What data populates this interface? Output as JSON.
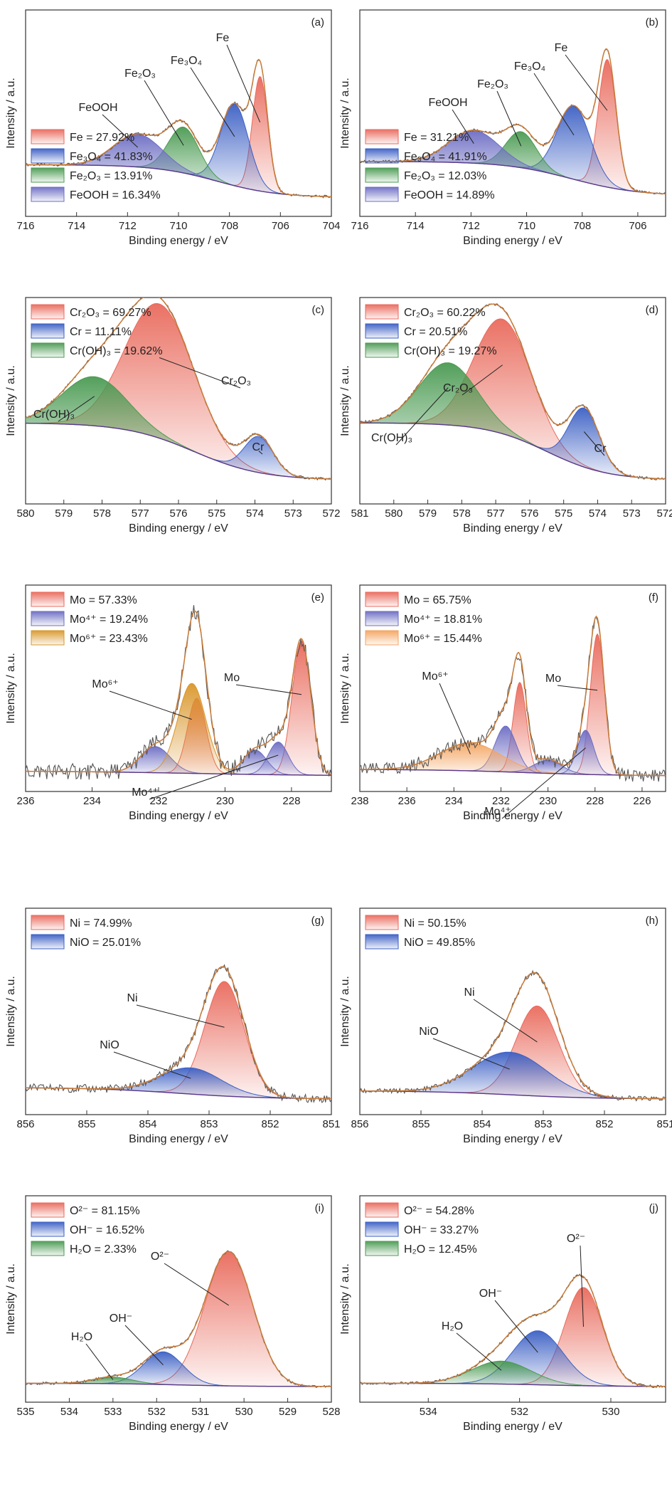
{
  "figure": {
    "xlabel": "Binding energy / eV",
    "ylabel": "Intensity / a.u."
  },
  "chart_data": [
    {
      "id": "a",
      "panel_label": "(a)",
      "type": "area",
      "xlabel": "Binding energy / eV",
      "ylabel": "Intensity / a.u.",
      "xlim": [
        716,
        704
      ],
      "xticks": [
        716,
        714,
        712,
        710,
        708,
        706,
        704
      ],
      "legend_position": "bottom-left",
      "background": {
        "start": 0.22,
        "end": 0.02,
        "center": 708.5,
        "width": 1.2
      },
      "series": [
        {
          "name": "Fe = 27.92%",
          "label": "Fe",
          "component": "Fe",
          "center": 706.8,
          "height": 0.7,
          "width": 0.3,
          "color": "#e96a5c"
        },
        {
          "name": "Fe₃O₄ = 41.83%",
          "label": "Fe₃O₄",
          "component": "Fe3O4",
          "center": 707.8,
          "height": 0.5,
          "width": 0.55,
          "color": "#3b5fc4"
        },
        {
          "name": "Fe₂O₃ = 13.91%",
          "label": "Fe₂O₃",
          "component": "Fe2O3",
          "center": 709.8,
          "height": 0.28,
          "width": 0.6,
          "color": "#4a9a52"
        },
        {
          "name": "FeOOH = 16.34%",
          "label": "FeOOH",
          "component": "FeOOH",
          "center": 711.6,
          "height": 0.2,
          "width": 0.95,
          "color": "#6c6cc4"
        }
      ]
    },
    {
      "id": "b",
      "panel_label": "(b)",
      "type": "area",
      "xlabel": "Binding energy / eV",
      "ylabel": "Intensity / a.u.",
      "xlim": [
        716,
        705
      ],
      "xticks": [
        716,
        714,
        712,
        710,
        708,
        706
      ],
      "legend_position": "bottom-left",
      "background": {
        "start": 0.24,
        "end": 0.03,
        "center": 708.4,
        "width": 1.2
      },
      "series": [
        {
          "name": "Fe = 31.21%",
          "label": "Fe",
          "component": "Fe",
          "center": 707.1,
          "height": 0.78,
          "width": 0.32,
          "color": "#e96a5c"
        },
        {
          "name": "Fe₃O₄ = 41.91%",
          "label": "Fe₃O₄",
          "component": "Fe3O4",
          "center": 708.3,
          "height": 0.45,
          "width": 0.6,
          "color": "#3b5fc4"
        },
        {
          "name": "Fe₂O₃ = 12.03%",
          "label": "Fe₂O₃",
          "component": "Fe2O3",
          "center": 710.2,
          "height": 0.22,
          "width": 0.55,
          "color": "#4a9a52"
        },
        {
          "name": "FeOOH = 14.89%",
          "label": "FeOOH",
          "component": "FeOOH",
          "center": 711.9,
          "height": 0.2,
          "width": 0.9,
          "color": "#6c6cc4"
        }
      ]
    },
    {
      "id": "c",
      "panel_label": "(c)",
      "type": "area",
      "xlabel": "Binding energy / eV",
      "ylabel": "Intensity / a.u.",
      "xlim": [
        580,
        572
      ],
      "xticks": [
        580,
        579,
        578,
        577,
        576,
        575,
        574,
        573,
        572
      ],
      "legend_position": "top-left",
      "background": {
        "start": 0.4,
        "end": 0.05,
        "center": 575.6,
        "width": 0.9
      },
      "series": [
        {
          "name": "Cr₂O₃ = 69.27%",
          "label": "Cr₂O₃",
          "component": "Cr2O3",
          "center": 576.5,
          "height": 0.82,
          "width": 0.9,
          "color": "#e96a5c"
        },
        {
          "name": "Cr = 11.11%",
          "label": "Cr",
          "component": "Cr",
          "center": 573.9,
          "height": 0.22,
          "width": 0.38,
          "color": "#3b5fc4"
        },
        {
          "name": "Cr(OH)₃ = 19.62%",
          "label": "Cr(OH)₃",
          "component": "CrOH3",
          "center": 578.2,
          "height": 0.3,
          "width": 0.85,
          "color": "#4a9a52"
        }
      ]
    },
    {
      "id": "d",
      "panel_label": "(d)",
      "type": "area",
      "xlabel": "Binding energy / eV",
      "ylabel": "Intensity / a.u.",
      "xlim": [
        581,
        572
      ],
      "xticks": [
        581,
        580,
        579,
        578,
        577,
        576,
        575,
        574,
        573,
        572
      ],
      "legend_position": "top-left",
      "background": {
        "start": 0.4,
        "end": 0.05,
        "center": 575.5,
        "width": 0.9
      },
      "series": [
        {
          "name": "Cr₂O₃ = 60.22%",
          "label": "Cr₂O₃",
          "component": "Cr2O3",
          "center": 576.8,
          "height": 0.7,
          "width": 0.85,
          "color": "#e96a5c"
        },
        {
          "name": "Cr = 20.51%",
          "label": "Cr",
          "component": "Cr",
          "center": 574.4,
          "height": 0.36,
          "width": 0.45,
          "color": "#3b5fc4"
        },
        {
          "name": "Cr(OH)₃ = 19.27%",
          "label": "Cr(OH)₃",
          "component": "CrOH3",
          "center": 578.4,
          "height": 0.38,
          "width": 0.85,
          "color": "#4a9a52"
        }
      ]
    },
    {
      "id": "e",
      "panel_label": "(e)",
      "type": "area",
      "xlabel": "Binding energy / eV",
      "ylabel": "Intensity / a.u.",
      "xlim": [
        236,
        226.8
      ],
      "xticks": [
        236,
        234,
        232,
        230,
        228
      ],
      "legend_position": "top-left",
      "background": {
        "start": 0.03,
        "end": 0.0,
        "center": 231,
        "width": 2.0
      },
      "noise": 0.05,
      "series": [
        {
          "name": "Mo = 57.33%",
          "label": "Mo",
          "component": "Mo",
          "center": 227.7,
          "height": 0.82,
          "width": 0.28,
          "color": "#e96a5c"
        },
        {
          "name": "Mo = 57.33%",
          "label": "Mo",
          "component": "Mo-b",
          "center": 230.85,
          "height": 0.46,
          "width": 0.28,
          "color": "#e96a5c"
        },
        {
          "name": "Mo⁴⁺ = 19.24%",
          "label": "Mo⁴⁺",
          "component": "Mo4a",
          "center": 228.4,
          "height": 0.2,
          "width": 0.3,
          "color": "#6c6cc4"
        },
        {
          "name": "Mo⁴⁺ = 19.24%",
          "label": "Mo⁴⁺",
          "component": "Mo4b",
          "center": 229.1,
          "height": 0.15,
          "width": 0.35,
          "color": "#6c6cc4"
        },
        {
          "name": "Mo⁴⁺ = 19.24%",
          "label": "Mo⁴⁺",
          "component": "Mo4c",
          "center": 232.1,
          "height": 0.16,
          "width": 0.45,
          "color": "#6c6cc4"
        },
        {
          "name": "Mo⁶⁺ = 23.43%",
          "label": "Mo⁶⁺",
          "component": "Mo6",
          "center": 231.0,
          "height": 0.55,
          "width": 0.42,
          "color": "#d9962a"
        }
      ]
    },
    {
      "id": "f",
      "panel_label": "(f)",
      "type": "area",
      "xlabel": "Binding energy / eV",
      "ylabel": "Intensity / a.u.",
      "xlim": [
        238,
        225
      ],
      "xticks": [
        238,
        236,
        234,
        232,
        230,
        228,
        226
      ],
      "legend_position": "top-left",
      "background": {
        "start": 0.04,
        "end": 0.0,
        "center": 231,
        "width": 2.0
      },
      "noise": 0.04,
      "series": [
        {
          "name": "Mo = 65.75%",
          "label": "Mo",
          "component": "Mo",
          "center": 227.9,
          "height": 0.86,
          "width": 0.3,
          "color": "#e96a5c"
        },
        {
          "name": "Mo = 65.75%",
          "label": "Mo",
          "component": "Mo-b",
          "center": 231.2,
          "height": 0.55,
          "width": 0.28,
          "color": "#e96a5c"
        },
        {
          "name": "Mo⁴⁺ = 18.81%",
          "label": "Mo⁴⁺",
          "component": "Mo4a",
          "center": 228.4,
          "height": 0.27,
          "width": 0.35,
          "color": "#6c6cc4"
        },
        {
          "name": "Mo⁴⁺ = 18.81%",
          "label": "Mo⁴⁺",
          "component": "Mo4b",
          "center": 231.8,
          "height": 0.28,
          "width": 0.45,
          "color": "#6c6cc4"
        },
        {
          "name": "Mo⁴⁺ = 18.81%",
          "label": "Mo⁴⁺",
          "component": "Mo4c",
          "center": 230.0,
          "height": 0.08,
          "width": 0.6,
          "color": "#6c6cc4"
        },
        {
          "name": "Mo⁶⁺ = 15.44%",
          "label": "Mo⁶⁺",
          "component": "Mo6",
          "center": 233.3,
          "height": 0.17,
          "width": 1.3,
          "color": "#f4a460"
        }
      ]
    },
    {
      "id": "g",
      "panel_label": "(g)",
      "type": "area",
      "xlabel": "Binding energy / eV",
      "ylabel": "Intensity / a.u.",
      "xlim": [
        856,
        851
      ],
      "xticks": [
        856,
        855,
        854,
        853,
        852,
        851
      ],
      "legend_position": "top-left",
      "background": {
        "start": 0.07,
        "end": 0.0,
        "center": 853.5,
        "width": 0.7
      },
      "noise": 0.025,
      "series": [
        {
          "name": "Ni = 74.99%",
          "label": "Ni",
          "component": "Ni",
          "center": 852.75,
          "height": 0.7,
          "width": 0.32,
          "color": "#e96a5c"
        },
        {
          "name": "NiO = 25.01%",
          "label": "NiO",
          "component": "NiO",
          "center": 853.3,
          "height": 0.16,
          "width": 0.5,
          "color": "#3b5fc4"
        }
      ]
    },
    {
      "id": "h",
      "panel_label": "(h)",
      "type": "area",
      "xlabel": "Binding energy / eV",
      "ylabel": "Intensity / a.u.",
      "xlim": [
        856,
        851
      ],
      "xticks": [
        856,
        855,
        854,
        853,
        852,
        851
      ],
      "legend_position": "top-left",
      "background": {
        "start": 0.05,
        "end": 0.0,
        "center": 853.5,
        "width": 0.7
      },
      "noise": 0.015,
      "series": [
        {
          "name": "Ni = 50.15%",
          "label": "Ni",
          "component": "Ni",
          "center": 853.1,
          "height": 0.55,
          "width": 0.35,
          "color": "#e96a5c"
        },
        {
          "name": "NiO = 49.85%",
          "label": "NiO",
          "component": "NiO",
          "center": 853.55,
          "height": 0.26,
          "width": 0.6,
          "color": "#3b5fc4"
        }
      ]
    },
    {
      "id": "i",
      "panel_label": "(i)",
      "type": "area",
      "xlabel": "Binding energy / eV",
      "ylabel": "Intensity / a.u.",
      "xlim": [
        535,
        528
      ],
      "xticks": [
        535,
        534,
        533,
        532,
        531,
        530,
        529,
        528
      ],
      "legend_position": "top-left",
      "background": {
        "start": 0.02,
        "end": 0.0,
        "center": 531.5,
        "width": 0.8
      },
      "series": [
        {
          "name": "O²⁻ = 81.15%",
          "label": "O²⁻",
          "component": "O2",
          "center": 530.35,
          "height": 0.82,
          "width": 0.55,
          "color": "#e96a5c"
        },
        {
          "name": "OH⁻ = 16.52%",
          "label": "OH⁻",
          "component": "OH",
          "center": 531.85,
          "height": 0.2,
          "width": 0.45,
          "color": "#3b5fc4"
        },
        {
          "name": "H₂O = 2.33%",
          "label": "H₂O",
          "component": "H2O",
          "center": 533.0,
          "height": 0.04,
          "width": 0.45,
          "color": "#4a9a52"
        }
      ]
    },
    {
      "id": "j",
      "panel_label": "(j)",
      "type": "area",
      "xlabel": "Binding energy / eV",
      "ylabel": "Intensity / a.u.",
      "xlim": [
        535.5,
        528.8
      ],
      "xticks": [
        534,
        532,
        530
      ],
      "legend_position": "top-left",
      "background": {
        "start": 0.02,
        "end": 0.0,
        "center": 531.5,
        "width": 0.8
      },
      "series": [
        {
          "name": "O²⁻ = 54.28%",
          "label": "O²⁻",
          "component": "O2",
          "center": 530.6,
          "height": 0.6,
          "width": 0.42,
          "color": "#e96a5c"
        },
        {
          "name": "OH⁻ = 33.27%",
          "label": "OH⁻",
          "component": "OH",
          "center": 531.6,
          "height": 0.33,
          "width": 0.55,
          "color": "#3b5fc4"
        },
        {
          "name": "H₂O = 12.45%",
          "label": "H₂O",
          "component": "H2O",
          "center": 532.4,
          "height": 0.14,
          "width": 0.65,
          "color": "#4a9a52"
        }
      ]
    }
  ]
}
